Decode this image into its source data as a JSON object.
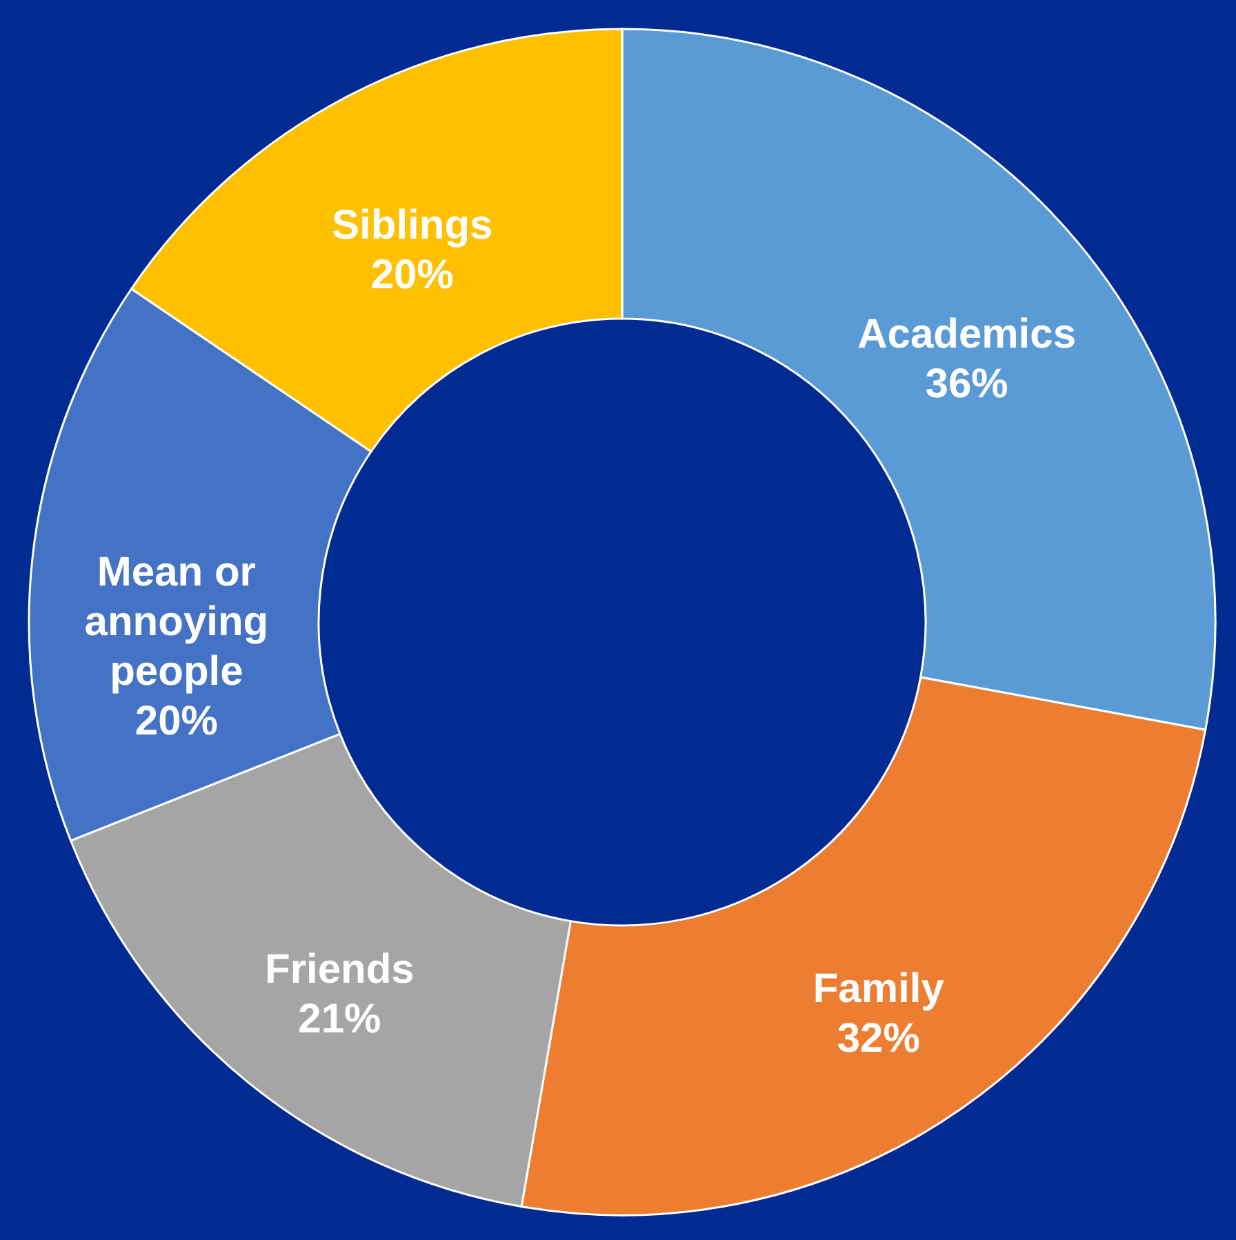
{
  "chart_data": {
    "type": "donut",
    "categories": [
      "Academics",
      "Family",
      "Friends",
      "Mean or annoying people",
      "Siblings"
    ],
    "values": [
      36,
      32,
      21,
      20,
      20
    ],
    "value_labels": [
      "36%",
      "32%",
      "21%",
      "20%",
      "20%"
    ],
    "colors": [
      "#5b9bd5",
      "#ed7d31",
      "#a5a5a5",
      "#4472c4",
      "#ffc000"
    ],
    "legend": false
  }
}
